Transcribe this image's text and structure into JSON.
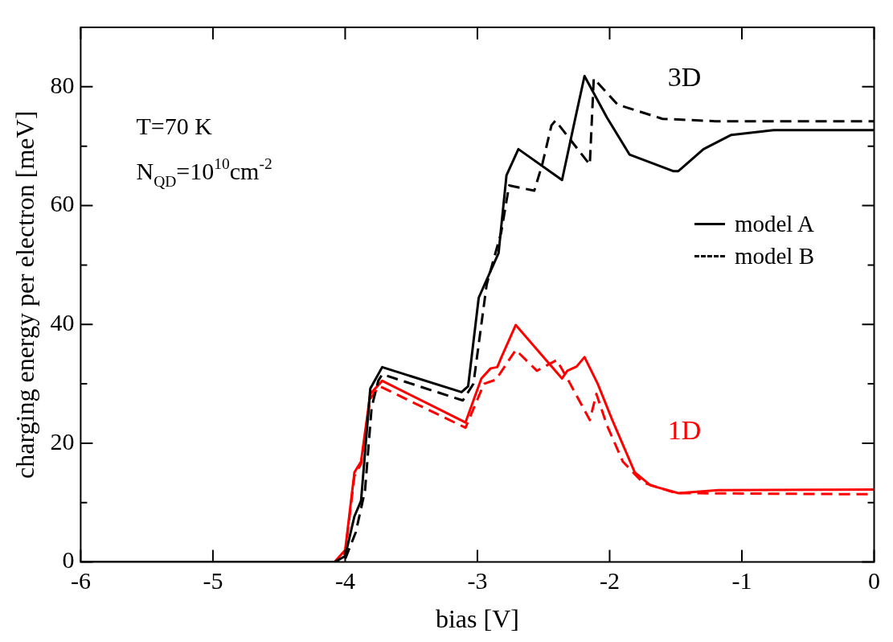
{
  "chart_data": {
    "type": "line",
    "xlabel": "bias [V]",
    "ylabel": "charging energy per electron [meV]",
    "xlim": [
      -6,
      0
    ],
    "ylim": [
      0,
      90
    ],
    "xticks": [
      -6,
      -5,
      -4,
      -3,
      -2,
      -1,
      0
    ],
    "yticks": [
      0,
      {
        "value": 10,
        "label": null
      },
      20,
      {
        "value": 30,
        "label": null
      },
      40,
      {
        "value": 50,
        "label": null
      },
      60,
      {
        "value": 70,
        "label": null
      },
      80
    ],
    "grid": false,
    "legend": "right",
    "marker": "none",
    "annotations": [
      "T=70 K",
      "N$_{QD}$=10$^{10}$cm$^{-2}$",
      "3D",
      "1D"
    ],
    "series": [
      {
        "name": "model A",
        "color": "#000000",
        "line_style": "solid",
        "x": [
          -6,
          -4.08,
          -4.0,
          -3.93,
          -3.88,
          -3.81,
          -3.72,
          -3.12,
          -3.07,
          -2.99,
          -2.84,
          -2.78,
          -2.69,
          -2.36,
          -2.25,
          -2.19,
          -2.02,
          -1.85,
          -1.52,
          -1.48,
          -1.29,
          -1.08,
          -0.76,
          0
        ],
        "values": [
          0,
          0,
          1,
          7.7,
          10.3,
          29.2,
          32.8,
          28.6,
          29.6,
          44.5,
          52.0,
          65.1,
          69.5,
          64.3,
          75.7,
          81.8,
          74.8,
          68.6,
          65.8,
          65.8,
          69.5,
          71.9,
          72.7,
          72.7
        ]
      },
      {
        "name": "model B",
        "color": "#000000",
        "line_style": "dashed",
        "x": [
          -6,
          -4.08,
          -4.0,
          -3.92,
          -3.85,
          -3.8,
          -3.75,
          -3.72,
          -3.11,
          -3.03,
          -2.93,
          -2.82,
          -2.76,
          -2.57,
          -2.51,
          -2.44,
          -2.41,
          -2.15,
          -2.12,
          -1.94,
          -1.6,
          -1.2,
          0
        ],
        "values": [
          0,
          0,
          0.5,
          5,
          12,
          26,
          30.5,
          31.6,
          27.2,
          30.0,
          46.7,
          55.5,
          63.4,
          62.5,
          66.9,
          73.5,
          74.3,
          66.9,
          81.4,
          77.0,
          74.6,
          74.2,
          74.2
        ]
      },
      {
        "color": "#ff0000",
        "line_style": "solid",
        "x": [
          -6,
          -4.08,
          -4.0,
          -3.93,
          -3.88,
          -3.81,
          -3.72,
          -3.09,
          -2.97,
          -2.9,
          -2.85,
          -2.82,
          -2.71,
          -2.36,
          -2.32,
          -2.25,
          -2.19,
          -2.09,
          -1.98,
          -1.81,
          -1.69,
          -1.48,
          -1.18,
          0
        ],
        "values": [
          0,
          0,
          2,
          15.1,
          16.9,
          28.3,
          30.5,
          23.5,
          30.9,
          32.6,
          32.8,
          34.4,
          39.9,
          30.9,
          32.2,
          32.9,
          34.5,
          30.0,
          23.9,
          15.1,
          12.9,
          11.6,
          12.1,
          12.2
        ]
      },
      {
        "color": "#ff0000",
        "line_style": "dashed",
        "x": [
          -6,
          -4.08,
          -4.0,
          -3.93,
          -3.88,
          -3.81,
          -3.74,
          -3.09,
          -2.95,
          -2.86,
          -2.71,
          -2.55,
          -2.4,
          -2.32,
          -2.15,
          -2.1,
          -2.02,
          -1.9,
          -1.75,
          -1.5,
          0
        ],
        "values": [
          0,
          0,
          1.5,
          14.5,
          16.5,
          27.5,
          29.6,
          22.6,
          30.0,
          30.7,
          35.7,
          32.2,
          34.0,
          30.9,
          23.9,
          28.3,
          23.0,
          16.9,
          13.4,
          11.6,
          11.4
        ]
      }
    ]
  }
}
